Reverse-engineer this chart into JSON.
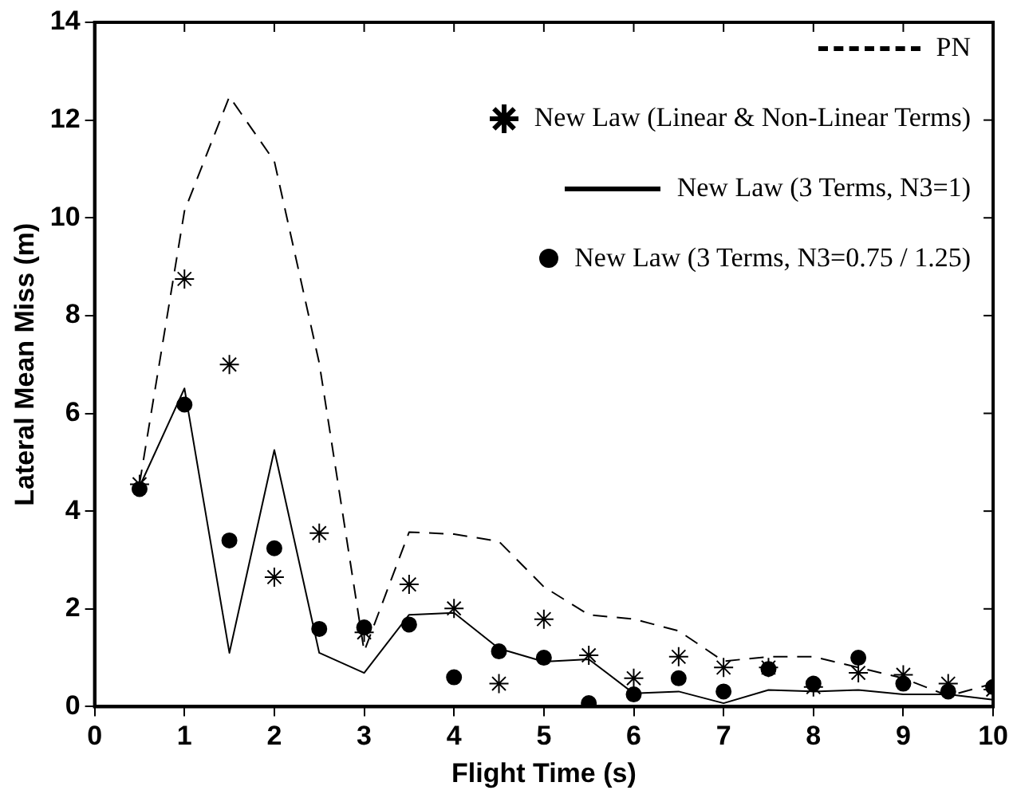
{
  "chart_data": {
    "type": "line",
    "xlabel": "Flight Time (s)",
    "ylabel": "Lateral Mean Miss (m)",
    "x": [
      0.5,
      1,
      1.5,
      2,
      2.5,
      3,
      3.5,
      4,
      4.5,
      5,
      5.5,
      6,
      6.5,
      7,
      7.5,
      8,
      8.5,
      9,
      9.5,
      10
    ],
    "xlim": [
      0,
      10
    ],
    "xticks": [
      0,
      1,
      2,
      3,
      4,
      5,
      6,
      7,
      8,
      9,
      10
    ],
    "ylim": [
      0,
      14
    ],
    "yticks": [
      0,
      2,
      4,
      6,
      8,
      10,
      12,
      14
    ],
    "grid": false,
    "legend": "top right",
    "series": [
      {
        "name": "PN",
        "color": "#000000",
        "line_style": "dashed",
        "marker": "none",
        "values": [
          4.56,
          10.14,
          12.48,
          11.16,
          7.03,
          1.13,
          3.57,
          3.53,
          3.38,
          2.45,
          1.88,
          1.79,
          1.55,
          0.93,
          1.02,
          1.02,
          0.8,
          0.58,
          0.22,
          0.47
        ]
      },
      {
        "name": "New Law (Linear & Non-Linear Terms)",
        "type": "scatter",
        "color": "#000000",
        "marker": "cross",
        "values": [
          4.55,
          8.75,
          7.0,
          2.65,
          3.55,
          1.52,
          2.5,
          2.01,
          0.47,
          1.79,
          1.05,
          0.58,
          1.02,
          0.8,
          0.8,
          0.4,
          0.69,
          0.65,
          0.47,
          0.35
        ]
      },
      {
        "name": "New Law (3 Terms, N3=1)",
        "color": "#000000",
        "line_style": "solid",
        "marker": "none",
        "values": [
          4.5,
          6.51,
          1.1,
          5.25,
          1.1,
          0.69,
          1.88,
          1.92,
          1.19,
          0.92,
          0.97,
          0.27,
          0.31,
          0.07,
          0.34,
          0.31,
          0.34,
          0.25,
          0.25,
          0.14
        ]
      },
      {
        "name": "New Law (3 Terms, N3=0.75 / 1.25)",
        "type": "scatter",
        "color": "#000000",
        "marker": "circle",
        "values": [
          4.45,
          6.18,
          3.4,
          3.24,
          1.59,
          1.62,
          1.68,
          0.6,
          1.13,
          1.0,
          0.07,
          0.25,
          0.58,
          0.31,
          0.77,
          0.47,
          1.0,
          0.47,
          0.31,
          0.4
        ]
      }
    ]
  }
}
